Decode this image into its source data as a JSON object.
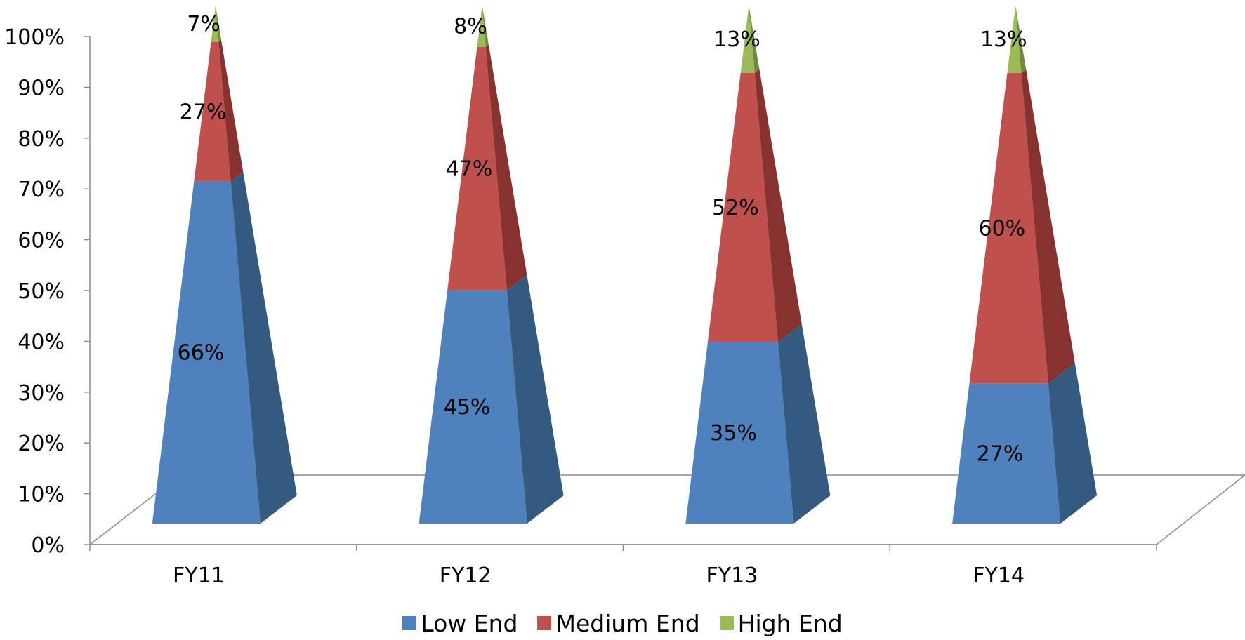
{
  "chart_data": {
    "type": "bar",
    "subtype": "stacked-100-percent-3d-pyramid",
    "categories": [
      "FY11",
      "FY12",
      "FY13",
      "FY14"
    ],
    "series": [
      {
        "name": "Low End",
        "values": [
          66,
          45,
          35,
          27
        ],
        "labels": [
          "66%",
          "45%",
          "35%",
          "27%"
        ],
        "color": "#4F81BD",
        "side_color": "#345A82"
      },
      {
        "name": "Medium End",
        "values": [
          27,
          47,
          52,
          60
        ],
        "labels": [
          "27%",
          "47%",
          "52%",
          "60%"
        ],
        "color": "#C0504D",
        "side_color": "#86332F"
      },
      {
        "name": "High End",
        "values": [
          7,
          8,
          13,
          13
        ],
        "labels": [
          "7%",
          "8%",
          "13%",
          "13%"
        ],
        "color": "#9BBB59",
        "side_color": "#6E8A3A"
      }
    ],
    "y_ticks": [
      "0%",
      "10%",
      "20%",
      "30%",
      "40%",
      "50%",
      "60%",
      "70%",
      "80%",
      "90%",
      "100%"
    ],
    "ylim": [
      0,
      100
    ],
    "title": "",
    "xlabel": "",
    "ylabel": "",
    "grid": false,
    "legend_position": "bottom"
  }
}
